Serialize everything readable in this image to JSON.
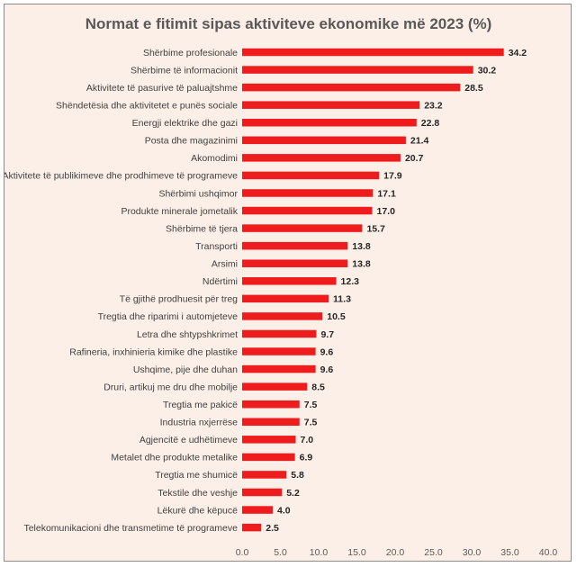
{
  "chart_data": {
    "type": "bar",
    "orientation": "horizontal",
    "title": "Normat e fitimit sipas aktiviteve ekonomike më 2023 (%)",
    "categories": [
      "Shërbime profesionale",
      "Shërbime të informacionit",
      "Aktivitete të pasurive të paluajtshme",
      "Shëndetësia dhe aktivitetet e punës sociale",
      "Energji elektrike dhe gazi",
      "Posta dhe magazinimi",
      "Akomodimi",
      "Aktivitete të publikimeve dhe prodhimeve të programeve",
      "Shërbimi ushqimor",
      "Produkte minerale jometalik",
      "Shërbime të tjera",
      "Transporti",
      "Arsimi",
      "Ndërtimi",
      "Të gjithë prodhuesit për treg",
      "Tregtia dhe riparimi i automjeteve",
      "Letra dhe shtypshkrimet",
      "Rafineria, inxhinieria kimike dhe plastike",
      "Ushqime, pije dhe duhan",
      "Druri, artikuj me dru dhe mobilje",
      "Tregtia me pakicë",
      "Industria nxjerrëse",
      "Agjencitë e udhëtimeve",
      "Metalet dhe produkte metalike",
      "Tregtia me  shumicë",
      "Tekstile dhe veshje",
      "Lëkurë dhe këpucë",
      "Telekomunikacioni dhe transmetime të programeve"
    ],
    "values": [
      34.2,
      30.2,
      28.5,
      23.2,
      22.8,
      21.4,
      20.7,
      17.9,
      17.1,
      17.0,
      15.7,
      13.8,
      13.8,
      12.3,
      11.3,
      10.5,
      9.7,
      9.6,
      9.6,
      8.5,
      7.5,
      7.5,
      7.0,
      6.9,
      5.8,
      5.2,
      4.0,
      2.5
    ],
    "value_labels": [
      "34.2",
      "30.2",
      "28.5",
      "23.2",
      "22.8",
      "21.4",
      "20.7",
      "17.9",
      "17.1",
      "17.0",
      "15.7",
      "13.8",
      "13.8",
      "12.3",
      "11.3",
      "10.5",
      "9.7",
      "9.6",
      "9.6",
      "8.5",
      "7.5",
      "7.5",
      "7.0",
      "6.9",
      "5.8",
      "5.2",
      "4.0",
      "2.5"
    ],
    "xlim": [
      0,
      40
    ],
    "x_ticks": [
      "0.0",
      "5.0",
      "10.0",
      "15.0",
      "20.0",
      "25.0",
      "30.0",
      "35.0",
      "40.0"
    ],
    "grid": false,
    "legend": "none",
    "colors": {
      "bar": "#ee1c1c",
      "background": "#fcefe7",
      "title": "#595959"
    }
  }
}
